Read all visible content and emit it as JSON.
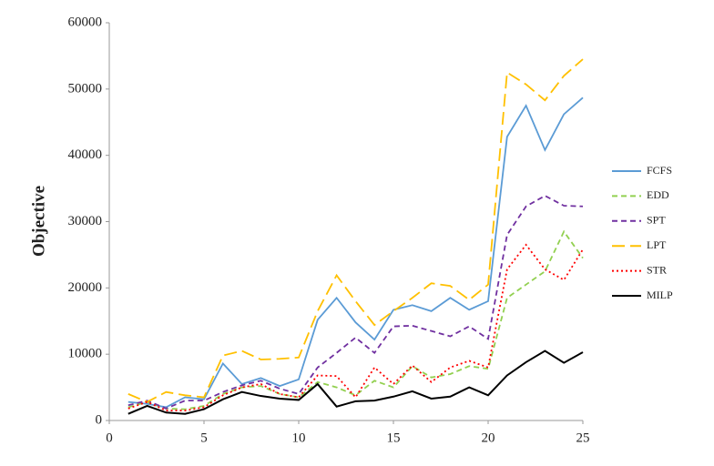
{
  "chart_data": {
    "type": "line",
    "y_label": "Objective",
    "x": [
      1,
      2,
      3,
      4,
      5,
      6,
      7,
      8,
      9,
      10,
      11,
      12,
      13,
      14,
      15,
      16,
      17,
      18,
      19,
      20,
      21,
      22,
      23,
      24,
      25
    ],
    "xlim": [
      0,
      25
    ],
    "xticks": [
      0,
      5,
      10,
      15,
      20,
      25
    ],
    "ylim": [
      0,
      60000
    ],
    "yticks": [
      0,
      10000,
      20000,
      30000,
      40000,
      50000,
      60000
    ],
    "grid": false,
    "legend": "right",
    "series": [
      {
        "name": "FCFS",
        "color": "#5b9bd5",
        "style": "solid",
        "values": [
          2800,
          2500,
          2000,
          3500,
          3200,
          8600,
          5500,
          6400,
          5200,
          6200,
          15200,
          18500,
          14800,
          12200,
          16700,
          17400,
          16500,
          18500,
          16700,
          18000,
          42800,
          47500,
          40800,
          46200,
          48700
        ]
      },
      {
        "name": "EDD",
        "color": "#92d050",
        "style": "dashed",
        "values": [
          2000,
          2800,
          1800,
          1700,
          2200,
          4000,
          5000,
          5200,
          4000,
          3500,
          5800,
          5000,
          3800,
          6000,
          5000,
          8200,
          6500,
          7000,
          8200,
          7800,
          18500,
          20500,
          22500,
          28500,
          24500
        ]
      },
      {
        "name": "SPT",
        "color": "#7030a0",
        "style": "dashed",
        "values": [
          2300,
          3000,
          1800,
          3000,
          3000,
          4300,
          5300,
          6000,
          4800,
          4000,
          8000,
          10200,
          12500,
          10200,
          14200,
          14300,
          13500,
          12700,
          14200,
          12300,
          28000,
          32300,
          33900,
          32400,
          32300
        ]
      },
      {
        "name": "LPT",
        "color": "#ffc000",
        "style": "longdash",
        "values": [
          4000,
          2800,
          4300,
          3800,
          3500,
          9800,
          10500,
          9200,
          9300,
          9500,
          16500,
          21900,
          18000,
          14400,
          16500,
          18500,
          20700,
          20300,
          18200,
          20500,
          52500,
          50700,
          48300,
          52000,
          54500
        ]
      },
      {
        "name": "STR",
        "color": "#ff0000",
        "style": "dotted",
        "values": [
          1800,
          2800,
          1500,
          1500,
          2000,
          3800,
          5000,
          5500,
          4000,
          3500,
          6800,
          6700,
          3500,
          8000,
          5500,
          8300,
          5800,
          8000,
          9000,
          8000,
          22800,
          26500,
          22800,
          21200,
          25800
        ]
      },
      {
        "name": "MILP",
        "color": "#000000",
        "style": "solid",
        "values": [
          1000,
          2200,
          1200,
          1000,
          1700,
          3200,
          4300,
          3700,
          3300,
          3100,
          5500,
          2100,
          2900,
          3000,
          3600,
          4400,
          3300,
          3600,
          5000,
          3800,
          6800,
          8800,
          10500,
          8700,
          10300
        ]
      }
    ]
  }
}
